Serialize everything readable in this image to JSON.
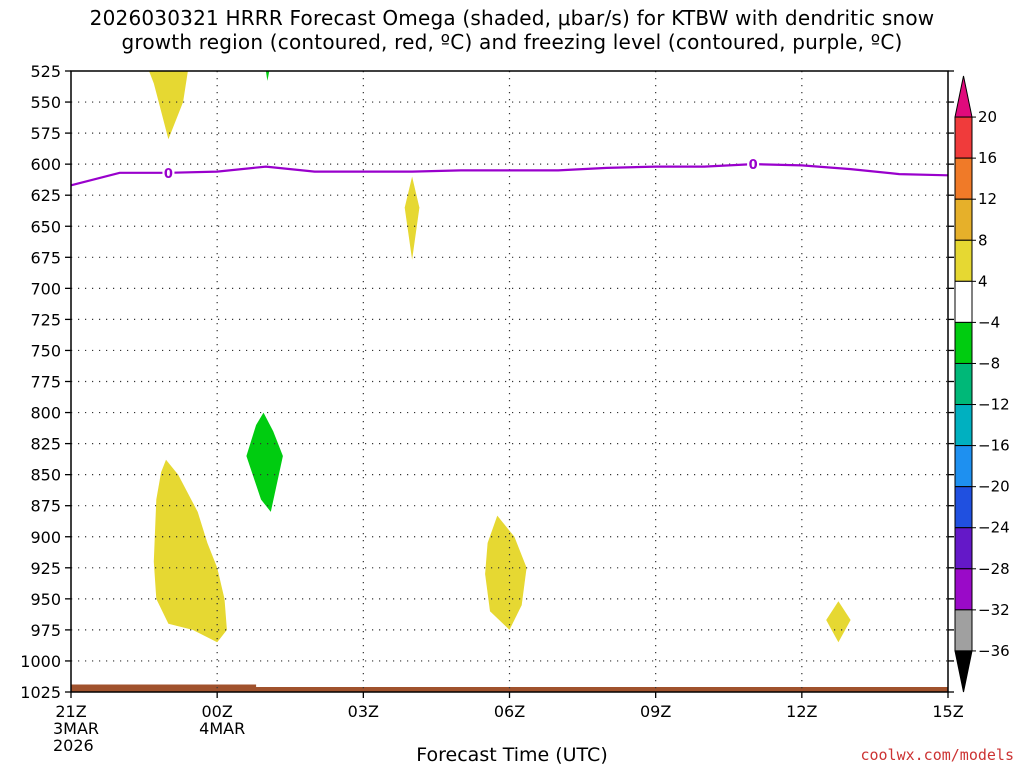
{
  "title": {
    "line1": "2026030321 HRRR Forecast Omega (shaded, μbar/s) for KTBW with dendritic snow",
    "line2": "growth region (contoured, red, ºC) and freezing level (contoured, purple, ºC)"
  },
  "credit": "coolwx.com/models",
  "chart_data": {
    "type": "time-height cross section",
    "title": "2026030321 HRRR Forecast Omega (shaded, μbar/s) for KTBW with dendritic snow growth region (contoured, red, ºC) and freezing level (contoured, purple, ºC)",
    "xlabel": "Forecast Time (UTC)",
    "ylabel": "",
    "x_unit": "hours after 2026-03-03 21Z",
    "xlim": [
      0,
      18
    ],
    "ylim": [
      1025,
      525
    ],
    "y_ticks": [
      525,
      550,
      575,
      600,
      625,
      650,
      675,
      700,
      725,
      750,
      775,
      800,
      825,
      850,
      875,
      900,
      925,
      950,
      975,
      1000,
      1025
    ],
    "x_ticks": [
      {
        "x": 0,
        "lines": [
          "21Z",
          "3MAR",
          "2026"
        ]
      },
      {
        "x": 3,
        "lines": [
          "00Z",
          "4MAR"
        ]
      },
      {
        "x": 6,
        "lines": [
          "03Z"
        ]
      },
      {
        "x": 9,
        "lines": [
          "06Z"
        ]
      },
      {
        "x": 12,
        "lines": [
          "09Z"
        ]
      },
      {
        "x": 15,
        "lines": [
          "12Z"
        ]
      },
      {
        "x": 18,
        "lines": [
          "15Z"
        ]
      }
    ],
    "grid": true,
    "colorbar": {
      "labels": [
        "20",
        "16",
        "12",
        "8",
        "4",
        "−4",
        "−8",
        "−12",
        "−16",
        "−20",
        "−24",
        "−28",
        "−32",
        "−36"
      ],
      "colors": [
        "#e00a7c",
        "#f03b3b",
        "#f07a28",
        "#e6b02a",
        "#e6d832",
        "#ffffff",
        "#00cc10",
        "#00b878",
        "#00b0c0",
        "#1e90f0",
        "#2050e0",
        "#6418c8",
        "#9a0ac8",
        "#a0a0a0",
        "#000000"
      ]
    },
    "freezing_level": {
      "color": "#9900cc",
      "label": "0",
      "label_at_x": [
        2,
        14
      ],
      "points": [
        [
          0,
          617
        ],
        [
          1,
          607
        ],
        [
          2,
          607
        ],
        [
          3,
          606
        ],
        [
          4,
          602
        ],
        [
          5,
          606
        ],
        [
          6,
          606
        ],
        [
          7,
          606
        ],
        [
          8,
          605
        ],
        [
          9,
          605
        ],
        [
          10,
          605
        ],
        [
          11,
          603
        ],
        [
          12,
          602
        ],
        [
          13,
          602
        ],
        [
          14,
          600
        ],
        [
          15,
          601
        ],
        [
          16,
          604
        ],
        [
          17,
          608
        ],
        [
          18,
          609
        ]
      ]
    },
    "shaded_regions": [
      {
        "color": "#e6d832",
        "points": [
          [
            1.6,
            525
          ],
          [
            2.4,
            525
          ],
          [
            2.3,
            550
          ],
          [
            2.0,
            580
          ],
          [
            1.8,
            550
          ],
          [
            1.7,
            535
          ]
        ]
      },
      {
        "color": "#00cc10",
        "points": [
          [
            4.0,
            525
          ],
          [
            4.07,
            525
          ],
          [
            4.03,
            533
          ]
        ]
      },
      {
        "color": "#e6d832",
        "points": [
          [
            7.0,
            610
          ],
          [
            7.15,
            635
          ],
          [
            7.0,
            677
          ],
          [
            6.85,
            635
          ]
        ]
      },
      {
        "color": "#00cc10",
        "points": [
          [
            3.95,
            800
          ],
          [
            4.15,
            815
          ],
          [
            4.35,
            835
          ],
          [
            4.1,
            880
          ],
          [
            3.9,
            870
          ],
          [
            3.6,
            835
          ],
          [
            3.8,
            810
          ]
        ]
      },
      {
        "color": "#e6d832",
        "points": [
          [
            1.95,
            838
          ],
          [
            2.2,
            850
          ],
          [
            2.6,
            880
          ],
          [
            2.8,
            905
          ],
          [
            3.0,
            925
          ],
          [
            3.15,
            950
          ],
          [
            3.2,
            975
          ],
          [
            3.0,
            985
          ],
          [
            2.5,
            975
          ],
          [
            2.0,
            970
          ],
          [
            1.75,
            950
          ],
          [
            1.7,
            920
          ],
          [
            1.75,
            870
          ],
          [
            1.85,
            848
          ]
        ]
      },
      {
        "color": "#e6d832",
        "points": [
          [
            8.75,
            883
          ],
          [
            9.1,
            900
          ],
          [
            9.35,
            925
          ],
          [
            9.25,
            955
          ],
          [
            9.0,
            975
          ],
          [
            8.6,
            960
          ],
          [
            8.5,
            930
          ],
          [
            8.55,
            905
          ]
        ]
      },
      {
        "color": "#e6d832",
        "points": [
          [
            15.75,
            952
          ],
          [
            16.0,
            967
          ],
          [
            15.75,
            985
          ],
          [
            15.5,
            967
          ]
        ]
      }
    ],
    "terrain": {
      "color": "#a0522d",
      "points": [
        [
          0,
          1019
        ],
        [
          3.8,
          1019
        ],
        [
          3.8,
          1021
        ],
        [
          18,
          1021
        ]
      ]
    }
  }
}
